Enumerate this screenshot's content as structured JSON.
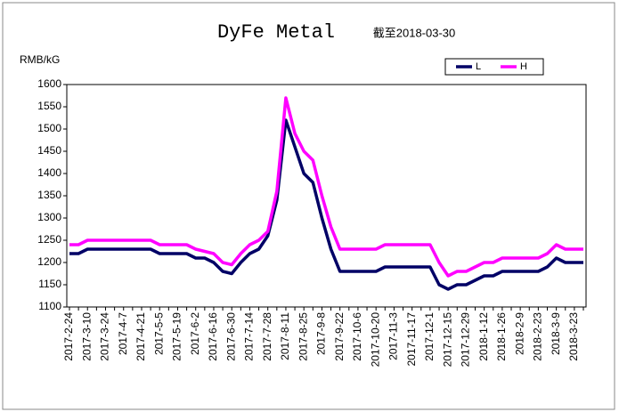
{
  "chart_data": {
    "type": "line",
    "title": "DyFe Metal",
    "subtitle": "截至2018-03-30",
    "y_label": "RMB/kG",
    "categories": [
      "2017-2-24",
      null,
      "2017-3-10",
      null,
      "2017-3-24",
      null,
      "2017-4-7",
      null,
      "2017-4-21",
      null,
      "2017-5-5",
      null,
      "2017-5-19",
      null,
      "2017-6-2",
      null,
      "2017-6-16",
      null,
      "2017-6-30",
      null,
      "2017-7-14",
      null,
      "2017-7-28",
      null,
      "2017-8-11",
      null,
      "2017-8-25",
      null,
      "2017-9-8",
      null,
      "2017-9-22",
      null,
      "2017-10-6",
      null,
      "2017-10-20",
      null,
      "2017-11-3",
      null,
      "2017-11-17",
      null,
      "2017-12-1",
      null,
      "2017-12-15",
      null,
      "2017-12-29",
      null,
      "2018-1-12",
      null,
      "2018-1-26",
      null,
      "2018-2-9",
      null,
      "2018-2-23",
      null,
      "2018-3-9",
      null,
      "2018-3-23",
      null
    ],
    "series": [
      {
        "name": "L",
        "color": "#000066",
        "values": [
          1220,
          1220,
          1230,
          1230,
          1230,
          1230,
          1230,
          1230,
          1230,
          1230,
          1220,
          1220,
          1220,
          1220,
          1210,
          1210,
          1200,
          1180,
          1175,
          1200,
          1220,
          1230,
          1260,
          1340,
          1520,
          1460,
          1400,
          1380,
          1300,
          1230,
          1180,
          1180,
          1180,
          1180,
          1180,
          1190,
          1190,
          1190,
          1190,
          1190,
          1190,
          1150,
          1140,
          1150,
          1150,
          1160,
          1170,
          1170,
          1180,
          1180,
          1180,
          1180,
          1180,
          1190,
          1210,
          1200,
          1200,
          1200
        ]
      },
      {
        "name": "H",
        "color": "#ff00ff",
        "values": [
          1240,
          1240,
          1250,
          1250,
          1250,
          1250,
          1250,
          1250,
          1250,
          1250,
          1240,
          1240,
          1240,
          1240,
          1230,
          1225,
          1220,
          1200,
          1195,
          1220,
          1240,
          1250,
          1270,
          1360,
          1570,
          1490,
          1450,
          1430,
          1350,
          1280,
          1230,
          1230,
          1230,
          1230,
          1230,
          1240,
          1240,
          1240,
          1240,
          1240,
          1240,
          1200,
          1170,
          1180,
          1180,
          1190,
          1200,
          1200,
          1210,
          1210,
          1210,
          1210,
          1210,
          1220,
          1240,
          1230,
          1230,
          1230
        ]
      }
    ],
    "ylim": [
      1100,
      1600
    ],
    "yticks": [
      1100,
      1150,
      1200,
      1250,
      1300,
      1350,
      1400,
      1450,
      1500,
      1550,
      1600
    ],
    "legend": "top-right"
  }
}
